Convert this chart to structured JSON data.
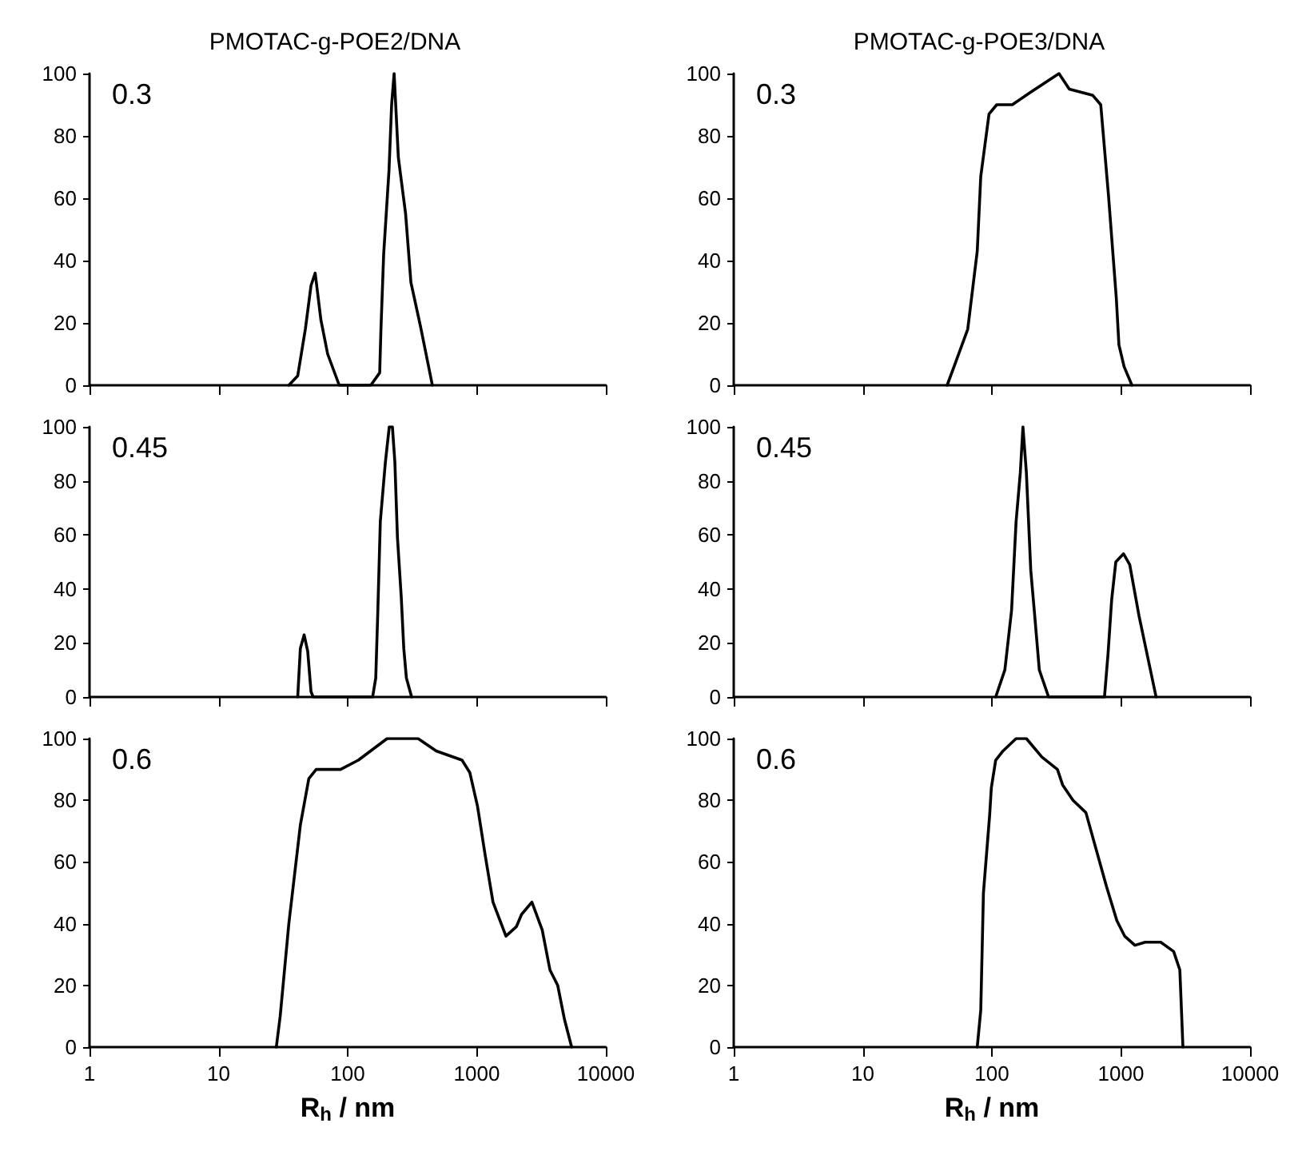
{
  "chart_data": [
    {
      "type": "line",
      "title": "PMOTAC-g-POE2/DNA",
      "annotations": [
        "0.3"
      ],
      "log": "x",
      "xlim": [
        1,
        10000
      ],
      "xticks": [
        1,
        10,
        100,
        1000,
        10000
      ],
      "ylim": [
        0,
        100
      ],
      "yticks": [
        0,
        20,
        40,
        60,
        80,
        100
      ],
      "tick_labels": "y",
      "series": [
        {
          "color": "#000000",
          "x": [
            35,
            41,
            47,
            52,
            56,
            62,
            70,
            86,
            151,
            177,
            181,
            190,
            209,
            219,
            229,
            247,
            281,
            309,
            366,
            453
          ],
          "values": [
            0,
            3,
            18,
            32,
            36,
            21,
            10,
            0,
            0,
            4,
            18,
            42,
            69,
            90,
            100,
            73,
            55,
            33,
            19,
            0
          ]
        }
      ]
    },
    {
      "type": "line",
      "title": "PMOTAC-g-POE3/DNA",
      "annotations": [
        "0.3"
      ],
      "log": "x",
      "xlim": [
        1,
        10000
      ],
      "xticks": [
        1,
        10,
        100,
        1000,
        10000
      ],
      "ylim": [
        0,
        100
      ],
      "yticks": [
        0,
        20,
        40,
        60,
        80,
        100
      ],
      "tick_labels": "y",
      "series": [
        {
          "color": "#000000",
          "x": [
            45,
            52,
            65,
            77,
            82,
            95,
            109,
            144,
            199,
            331,
            398,
            605,
            697,
            800,
            920,
            964,
            1057,
            1216
          ],
          "values": [
            0,
            7,
            18,
            43,
            67,
            87,
            90,
            90,
            94,
            100,
            95,
            93,
            90,
            61,
            28,
            13,
            6,
            0
          ]
        }
      ]
    },
    {
      "type": "line",
      "annotations": [
        "0.45"
      ],
      "log": "x",
      "xlim": [
        1,
        10000
      ],
      "xticks": [
        1,
        10,
        100,
        1000,
        10000
      ],
      "ylim": [
        0,
        100
      ],
      "yticks": [
        0,
        20,
        40,
        60,
        80,
        100
      ],
      "tick_labels": "y",
      "series": [
        {
          "color": "#000000",
          "x": [
            41,
            43,
            46,
            49,
            52,
            54,
            156,
            165,
            171,
            179,
            196,
            210,
            222,
            232,
            243,
            260,
            272,
            285,
            313
          ],
          "values": [
            0,
            18,
            23,
            17,
            2,
            0,
            0,
            7,
            31,
            65,
            87,
            100,
            100,
            87,
            59,
            37,
            18,
            7,
            0
          ]
        }
      ]
    },
    {
      "type": "line",
      "annotations": [
        "0.45"
      ],
      "log": "x",
      "xlim": [
        1,
        10000
      ],
      "xticks": [
        1,
        10,
        100,
        1000,
        10000
      ],
      "ylim": [
        0,
        100
      ],
      "yticks": [
        0,
        20,
        40,
        60,
        80,
        100
      ],
      "tick_labels": "y",
      "series": [
        {
          "color": "#000000",
          "x": [
            107,
            126,
            142,
            154,
            166,
            174,
            185,
            200,
            213,
            233,
            275,
            745,
            794,
            847,
            912,
            1047,
            1169,
            1380,
            1871
          ],
          "values": [
            0,
            10,
            32,
            65,
            83,
            100,
            83,
            47,
            32,
            10,
            0,
            0,
            16,
            36,
            50,
            53,
            49,
            30,
            0
          ]
        }
      ]
    },
    {
      "type": "line",
      "xlabel": "R$_{h}$ / nm",
      "annotations": [
        "0.6"
      ],
      "log": "x",
      "xlim": [
        1,
        10000
      ],
      "xticks": [
        1,
        10,
        100,
        1000,
        10000
      ],
      "ylim": [
        0,
        100
      ],
      "yticks": [
        0,
        20,
        40,
        60,
        80,
        100
      ],
      "series": [
        {
          "color": "#000000",
          "x": [
            28,
            30,
            35,
            43,
            50,
            57,
            88,
            121,
            202,
            351,
            485,
            769,
            883,
            1014,
            1164,
            1336,
            1683,
            2026,
            2223,
            2674,
            3214,
            3690,
            4238,
            4779,
            5433
          ],
          "values": [
            0,
            10,
            40,
            72,
            87,
            90,
            90,
            93,
            100,
            100,
            96,
            93,
            89,
            78,
            62,
            47,
            36,
            39,
            43,
            47,
            38,
            25,
            20,
            9,
            0
          ]
        }
      ]
    },
    {
      "type": "line",
      "xlabel": "R$_{h}$ / nm",
      "annotations": [
        "0.6"
      ],
      "log": "x",
      "xlim": [
        1,
        10000
      ],
      "xticks": [
        1,
        10,
        100,
        1000,
        10000
      ],
      "ylim": [
        0,
        100
      ],
      "yticks": [
        0,
        20,
        40,
        60,
        80,
        100
      ],
      "series": [
        {
          "color": "#000000",
          "x": [
            77,
            82,
            86,
            96,
            99,
            107,
            122,
            154,
            185,
            244,
            322,
            353,
            425,
            535,
            643,
            773,
            929,
            1067,
            1282,
            1542,
            2032,
            2559,
            2858,
            3020
          ],
          "values": [
            0,
            12,
            50,
            75,
            84,
            93,
            96,
            100,
            100,
            94,
            90,
            85,
            80,
            76,
            64,
            52,
            41,
            36,
            33,
            34,
            34,
            31,
            25,
            0
          ]
        }
      ]
    }
  ]
}
